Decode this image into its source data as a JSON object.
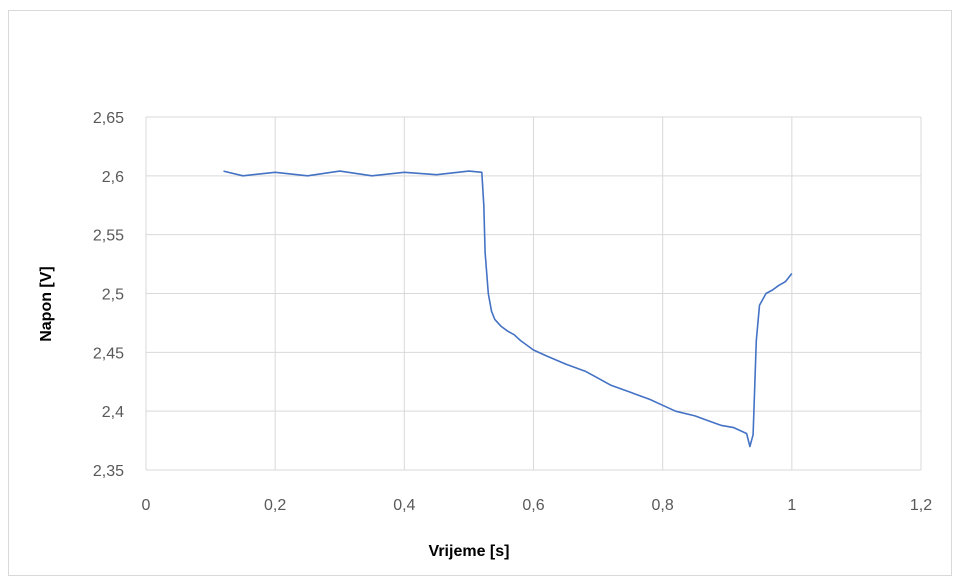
{
  "chart_data": {
    "type": "line",
    "title": "",
    "xlabel": "Vrijeme [s]",
    "ylabel": "Napon [V]",
    "xlim": [
      0,
      1.2
    ],
    "ylim": [
      2.35,
      2.65
    ],
    "xticks": [
      0,
      0.2,
      0.4,
      0.6,
      0.8,
      1.0,
      1.2
    ],
    "xtick_labels": [
      "0",
      "0,2",
      "0,4",
      "0,6",
      "0,8",
      "1",
      "1,2"
    ],
    "yticks": [
      2.35,
      2.4,
      2.45,
      2.5,
      2.55,
      2.6,
      2.65
    ],
    "ytick_labels": [
      "2,35",
      "2,4",
      "2,45",
      "2,5",
      "2,55",
      "2,6",
      "2,65"
    ],
    "grid": true,
    "legend": "none",
    "line_color": "#4472c4",
    "grid_color": "#d9d9d9",
    "series": [
      {
        "x": [
          0.12,
          0.15,
          0.2,
          0.25,
          0.3,
          0.35,
          0.4,
          0.45,
          0.5,
          0.52,
          0.523,
          0.525,
          0.53,
          0.535,
          0.54,
          0.55,
          0.56,
          0.57,
          0.58,
          0.6,
          0.62,
          0.65,
          0.68,
          0.7,
          0.72,
          0.75,
          0.78,
          0.8,
          0.82,
          0.85,
          0.87,
          0.89,
          0.91,
          0.93,
          0.935,
          0.94,
          0.945,
          0.95,
          0.96,
          0.97,
          0.98,
          0.99,
          1.0
        ],
        "y": [
          2.604,
          2.6,
          2.603,
          2.6,
          2.604,
          2.6,
          2.603,
          2.601,
          2.604,
          2.603,
          2.575,
          2.535,
          2.5,
          2.485,
          2.478,
          2.472,
          2.468,
          2.465,
          2.46,
          2.452,
          2.447,
          2.44,
          2.434,
          2.428,
          2.422,
          2.416,
          2.41,
          2.405,
          2.4,
          2.396,
          2.392,
          2.388,
          2.386,
          2.381,
          2.37,
          2.38,
          2.46,
          2.49,
          2.5,
          2.503,
          2.507,
          2.51,
          2.517
        ]
      }
    ]
  }
}
